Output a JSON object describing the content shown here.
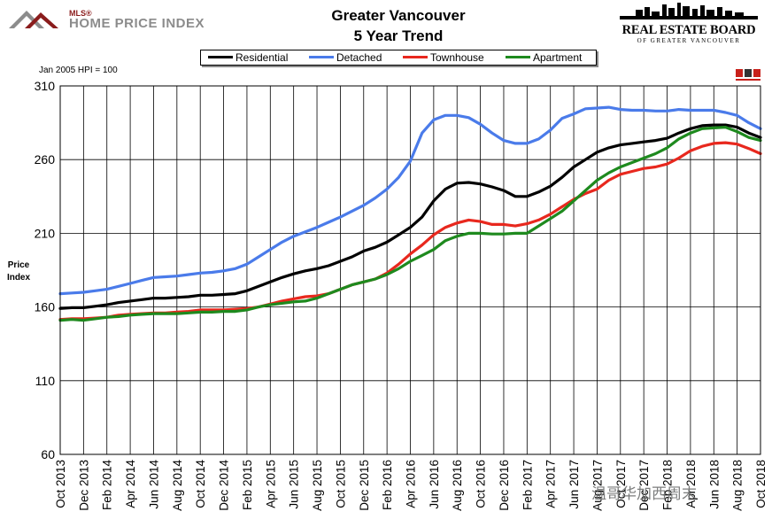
{
  "header": {
    "logo_mls_text": "MLS®",
    "logo_hpi_text": "HOME PRICE INDEX",
    "title_line1": "Greater Vancouver",
    "title_line2": "5 Year Trend",
    "reb_name": "REAL ESTATE BOARD",
    "reb_sub": "OF GREATER VANCOUVER"
  },
  "basis_note": "Jan 2005 HPI = 100",
  "watermark_text": "温哥华加西周末",
  "colors": {
    "residential": "#000000",
    "detached": "#4a7bea",
    "townhouse": "#e8281e",
    "apartment": "#1e8a1e",
    "frame": "#000000",
    "grid": "#000000"
  },
  "chart_data": {
    "type": "line",
    "title": "Greater Vancouver 5 Year Trend",
    "xlabel": "",
    "ylabel": "Price Index",
    "ylim": [
      60,
      310
    ],
    "yticks": [
      60,
      110,
      160,
      210,
      260,
      310
    ],
    "grid": true,
    "legend_position": "top",
    "x": [
      "Oct 2013",
      "Nov 2013",
      "Dec 2013",
      "Jan 2014",
      "Feb 2014",
      "Mar 2014",
      "Apr 2014",
      "May 2014",
      "Jun 2014",
      "Jul 2014",
      "Aug 2014",
      "Sep 2014",
      "Oct 2014",
      "Nov 2014",
      "Dec 2014",
      "Jan 2015",
      "Feb 2015",
      "Mar 2015",
      "Apr 2015",
      "May 2015",
      "Jun 2015",
      "Jul 2015",
      "Aug 2015",
      "Sep 2015",
      "Oct 2015",
      "Nov 2015",
      "Dec 2015",
      "Jan 2016",
      "Feb 2016",
      "Mar 2016",
      "Apr 2016",
      "May 2016",
      "Jun 2016",
      "Jul 2016",
      "Aug 2016",
      "Sep 2016",
      "Oct 2016",
      "Nov 2016",
      "Dec 2016",
      "Jan 2017",
      "Feb 2017",
      "Mar 2017",
      "Apr 2017",
      "May 2017",
      "Jun 2017",
      "Jul 2017",
      "Aug 2017",
      "Sep 2017",
      "Oct 2017",
      "Nov 2017",
      "Dec 2017",
      "Jan 2018",
      "Feb 2018",
      "Mar 2018",
      "Apr 2018",
      "May 2018",
      "Jun 2018",
      "Jul 2018",
      "Aug 2018",
      "Sep 2018",
      "Oct 2018"
    ],
    "tick_labels": [
      "Oct 2013",
      "Dec 2013",
      "Feb 2014",
      "Apr 2014",
      "Jun 2014",
      "Aug 2014",
      "Oct 2014",
      "Dec 2014",
      "Feb 2015",
      "Apr 2015",
      "Jun 2015",
      "Aug 2015",
      "Oct 2015",
      "Dec 2015",
      "Feb 2016",
      "Apr 2016",
      "Jun 2016",
      "Aug 2016",
      "Oct 2016",
      "Dec 2016",
      "Feb 2017",
      "Apr 2017",
      "Jun 2017",
      "Aug 2017",
      "Oct 2017",
      "Dec 2017",
      "Feb 2018",
      "Apr 2018",
      "Jun 2018",
      "Aug 2018",
      "Oct 2018"
    ],
    "series": [
      {
        "name": "Residential",
        "color": "#000000",
        "values": [
          159,
          159.5,
          159.5,
          160.5,
          161.5,
          163,
          164,
          165,
          166,
          166,
          166.5,
          167,
          168,
          168,
          168.5,
          169,
          171,
          174,
          177,
          180,
          182.5,
          184.5,
          186,
          188,
          191,
          194,
          198,
          200.5,
          204,
          209,
          214,
          221,
          232,
          240,
          244,
          244.5,
          243.5,
          241.5,
          239,
          235,
          235,
          238,
          242,
          248,
          255,
          260,
          265,
          268,
          270,
          271,
          272,
          273,
          274.5,
          278,
          281,
          283,
          283.5,
          283.5,
          282,
          278,
          275
        ]
      },
      {
        "name": "Detached",
        "color": "#4a7bea",
        "values": [
          169,
          169.5,
          170,
          171,
          172,
          174,
          176,
          178,
          180,
          180.5,
          181,
          182,
          183,
          183.5,
          184.5,
          186,
          189,
          194,
          199,
          204,
          208,
          211,
          214,
          217.5,
          221,
          225,
          229,
          234,
          240,
          248,
          259,
          278,
          287,
          290,
          290,
          288.5,
          284,
          278,
          273,
          271,
          271,
          274,
          280,
          288,
          291,
          294.5,
          295,
          295.5,
          294,
          293.5,
          293.5,
          293,
          293,
          294,
          293.5,
          293.5,
          293.5,
          292,
          290,
          285,
          281
        ]
      },
      {
        "name": "Townhouse",
        "color": "#e8281e",
        "values": [
          151.5,
          152,
          152,
          152.5,
          153,
          154.5,
          155,
          155.5,
          156,
          156,
          156.5,
          157,
          158,
          158,
          158,
          158.5,
          159,
          160,
          162,
          164,
          165.5,
          167,
          167.5,
          169,
          172,
          175,
          177,
          179,
          183,
          189,
          196,
          202,
          209,
          214,
          217,
          219,
          218,
          216,
          216,
          215,
          216.5,
          219,
          223,
          228,
          233,
          237,
          240,
          246,
          250,
          252,
          254,
          255,
          257,
          261,
          266,
          269,
          271,
          271.5,
          270.5,
          267.5,
          264
        ]
      },
      {
        "name": "Apartment",
        "color": "#1e8a1e",
        "values": [
          151,
          151.5,
          151,
          152,
          153,
          153.5,
          154.5,
          155,
          155.5,
          155.5,
          155.5,
          156,
          156.5,
          156.5,
          157,
          157,
          158,
          160,
          161.5,
          162.5,
          163.5,
          164,
          166,
          169,
          172,
          175,
          177,
          179,
          182,
          186,
          191,
          195,
          199,
          205,
          208,
          210,
          210,
          209.5,
          209.5,
          210,
          210,
          215,
          220,
          225,
          232,
          239,
          246,
          251,
          255,
          258,
          261,
          264,
          268,
          274,
          278,
          281,
          281.5,
          282,
          279,
          275,
          273
        ]
      }
    ]
  }
}
